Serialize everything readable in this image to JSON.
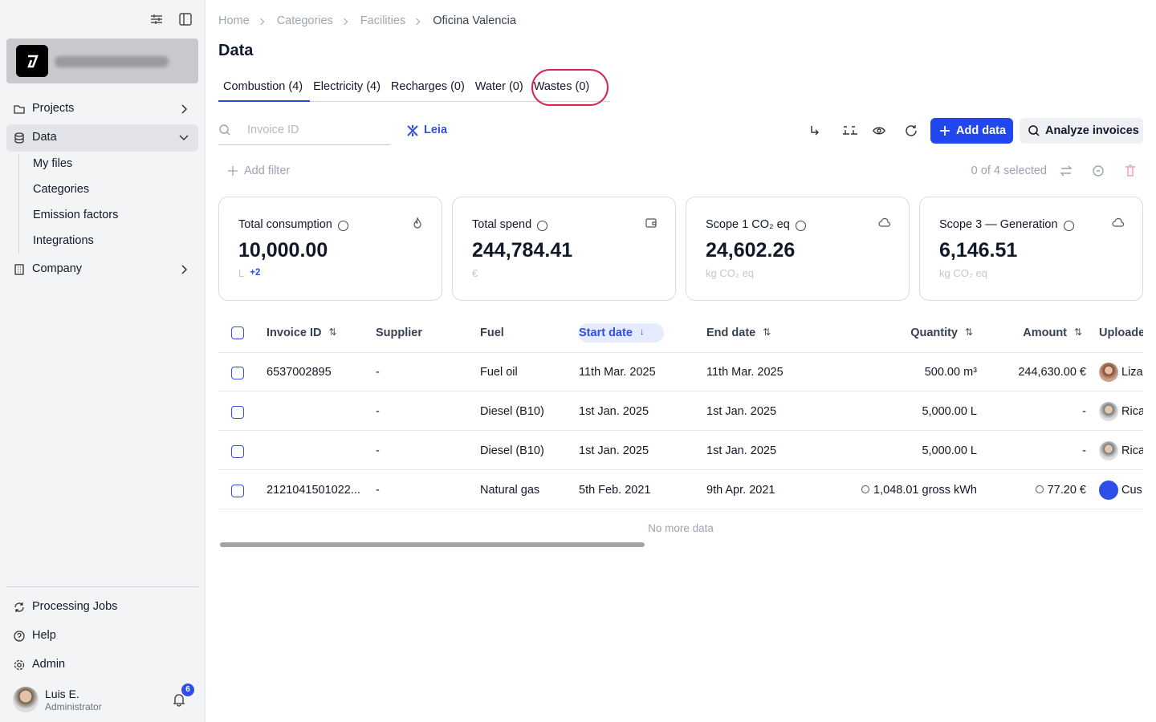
{
  "sidebar": {
    "nav": {
      "projects": "Projects",
      "data": "Data",
      "company": "Company"
    },
    "sub": [
      "My files",
      "Categories",
      "Emission factors",
      "Integrations"
    ],
    "bottom": [
      "Processing Jobs",
      "Help",
      "Admin"
    ],
    "user": {
      "name": "Luis E.",
      "role": "Administrator",
      "notifications": "6"
    }
  },
  "breadcrumb": [
    "Home",
    "Categories",
    "Facilities",
    "Oficina Valencia"
  ],
  "title": "Data",
  "tabs": [
    "Combustion (4)",
    "Electricity (4)",
    "Recharges (0)",
    "Water (0)",
    "Wastes (0)"
  ],
  "toolbar": {
    "search_placeholder": "Invoice ID",
    "leia": "Leia",
    "add_data": "Add data",
    "analyze": "Analyze invoices",
    "add_filter": "Add filter",
    "selection": "0 of 4 selected"
  },
  "cards": [
    {
      "title": "Total consumption",
      "value": "10,000.00",
      "unit": "L",
      "extra": "+2"
    },
    {
      "title": "Total spend",
      "value": "244,784.41",
      "unit": "€"
    },
    {
      "title": "Scope 1 CO₂ eq",
      "value": "24,602.26",
      "unit": "kg CO₂ eq"
    },
    {
      "title": "Scope 3 — Generation",
      "value": "6,146.51",
      "unit": "kg CO₂ eq"
    }
  ],
  "table": {
    "headers": [
      "Invoice ID",
      "Supplier",
      "Fuel",
      "Start date",
      "End date",
      "Quantity",
      "Amount",
      "Uploade"
    ],
    "rows": [
      [
        "6537002895",
        "-",
        "Fuel oil",
        "11th Mar. 2025",
        "11th Mar. 2025",
        "500.00 m³",
        "244,630.00 €",
        "Liza"
      ],
      [
        null,
        "-",
        "Diesel (B10)",
        "1st Jan. 2025",
        "1st Jan. 2025",
        "5,000.00 L",
        "-",
        "Rica"
      ],
      [
        null,
        "-",
        "Diesel (B10)",
        "1st Jan. 2025",
        "1st Jan. 2025",
        "5,000.00 L",
        "-",
        "Rica"
      ],
      [
        "2121041501022...",
        "-",
        "Natural gas",
        "5th Feb. 2021",
        "9th Apr. 2021",
        "1,048.01 gross kWh",
        "77.20 €",
        "Cus"
      ]
    ],
    "footer": "No more data"
  }
}
